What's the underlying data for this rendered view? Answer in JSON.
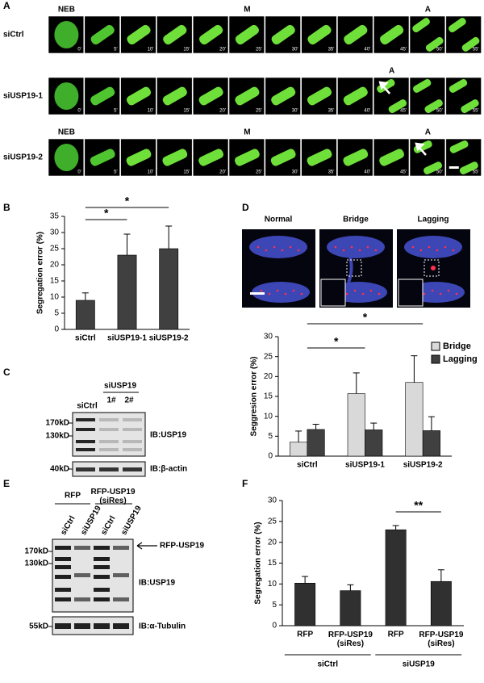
{
  "panel_a": {
    "letter": "A",
    "rows": [
      {
        "label": "siCtrl",
        "stages": [
          {
            "label": "NEB",
            "frame": 0
          },
          {
            "label": "M",
            "frame": 5
          },
          {
            "label": "A",
            "frame": 10
          }
        ],
        "times": [
          "0'",
          "5'",
          "10'",
          "15'",
          "20'",
          "25'",
          "30'",
          "35'",
          "40'",
          "45'",
          "50'",
          "55'"
        ]
      },
      {
        "label": "siUSP19-1",
        "stages": [
          {
            "label": "A",
            "frame": 9
          }
        ],
        "times": [
          "0'",
          "5'",
          "10'",
          "15'",
          "20'",
          "25'",
          "30'",
          "35'",
          "40'",
          "45'",
          "50'",
          "55'"
        ]
      },
      {
        "label": "siUSP19-2",
        "stages": [
          {
            "label": "NEB",
            "frame": 0
          },
          {
            "label": "M",
            "frame": 5
          },
          {
            "label": "A",
            "frame": 10
          }
        ],
        "times": [
          "0'",
          "5'",
          "10'",
          "15'",
          "20'",
          "25'",
          "30'",
          "35'",
          "40'",
          "45'",
          "50'",
          "55'"
        ]
      }
    ]
  },
  "panel_c": {
    "letter": "C",
    "header": "siUSP19",
    "lanes": [
      "siCtrl",
      "1#",
      "2#"
    ],
    "markers": [
      "170kD",
      "130kD",
      "40kD"
    ],
    "blots": [
      "IB:USP19",
      "IB:β-actin"
    ]
  },
  "panel_d_images": {
    "letter": "D",
    "images": [
      "Normal",
      "Bridge",
      "Lagging"
    ]
  },
  "panel_e": {
    "letter": "E",
    "groups": [
      "RFP",
      "RFP-USP19 (siRes)"
    ],
    "lanes": [
      "siCtrl",
      "siUSP19",
      "siCtrl",
      "siUSP19"
    ],
    "markers": [
      "170kD",
      "130kD",
      "55kD"
    ],
    "arrow": "RFP-USP19",
    "blots": [
      "IB:USP19",
      "IB:α-Tubulin"
    ]
  },
  "chart_data": [
    {
      "type": "bar",
      "panel": "B",
      "y_label": "Segregation error (%)",
      "categories": [
        "siCtrl",
        "siUSP19-1",
        "siUSP19-2"
      ],
      "series": [
        {
          "color": "#404040",
          "values": [
            9,
            23,
            25
          ],
          "errors": [
            2.3,
            6.5,
            7
          ]
        }
      ],
      "ylim": [
        0,
        35
      ],
      "yticks": [
        0,
        5,
        10,
        15,
        20,
        25,
        30,
        35
      ],
      "significance": [
        {
          "label": "*",
          "between": [
            0,
            1
          ]
        },
        {
          "label": "*",
          "between": [
            0,
            2
          ]
        }
      ]
    },
    {
      "type": "bar",
      "y_label": "Seggresion error (%)",
      "categories": [
        "siCtrl",
        "siUSP19-1",
        "siUSP19-2"
      ],
      "series": [
        {
          "name": "Bridge",
          "color": "#d9d9d9",
          "values": [
            3.5,
            15.7,
            18.5
          ],
          "errors": [
            2.8,
            5.2,
            6.7
          ]
        },
        {
          "name": "Lagging",
          "color": "#404040",
          "values": [
            6.7,
            6.6,
            6.4
          ],
          "errors": [
            1.3,
            1.7,
            3.5
          ]
        }
      ],
      "ylim": [
        0,
        30
      ],
      "yticks": [
        0,
        5,
        10,
        15,
        20,
        25,
        30
      ],
      "legend": "upper right",
      "significance": [
        {
          "label": "*",
          "between": [
            0,
            1
          ]
        },
        {
          "label": "*",
          "between": [
            0,
            2
          ]
        }
      ]
    },
    {
      "type": "bar",
      "panel": "F",
      "y_label": "Segregation error (%)",
      "categories": [
        "RFP",
        "RFP-USP19 (siRes)",
        "RFP",
        "RFP-USP19 (siRes)"
      ],
      "series": [
        {
          "color": "#303030",
          "values": [
            10.2,
            8.4,
            23,
            10.6
          ],
          "errors": [
            1.6,
            1.4,
            1,
            2.8
          ]
        }
      ],
      "ylim": [
        0,
        30
      ],
      "yticks": [
        0,
        5,
        10,
        15,
        20,
        25,
        30
      ],
      "groups": [
        {
          "label": "siCtrl",
          "span": [
            0,
            1
          ]
        },
        {
          "label": "siUSP19",
          "span": [
            2,
            3
          ]
        }
      ],
      "significance": [
        {
          "label": "**",
          "between": [
            2,
            3
          ]
        }
      ]
    }
  ]
}
